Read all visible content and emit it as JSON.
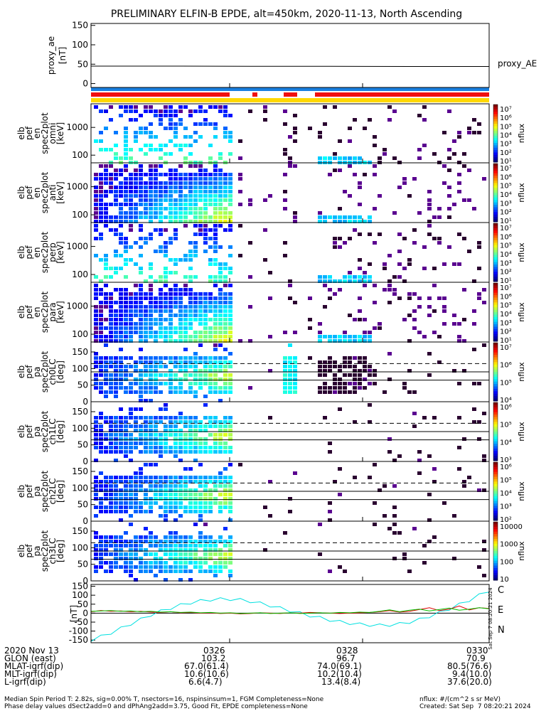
{
  "title": "PRELIMINARY ELFIN-B EPDE, alt=450km, 2020-11-13, North Ascending",
  "chart_data": [
    {
      "type": "line",
      "ylabel_lines": [
        "proxy_ae",
        "[nT]"
      ],
      "yticks": [
        "150",
        "100",
        "50",
        "0"
      ],
      "ylim": [
        -10,
        155
      ],
      "series": [
        {
          "name": "proxy_AE",
          "values": [
            45,
            45,
            44.5,
            44.5,
            44,
            44
          ]
        }
      ]
    },
    {
      "type": "heatmap",
      "ylabel_lines": [
        "elb",
        "pef",
        "en",
        "spec2plot",
        "omni",
        "[keV]"
      ],
      "yticks": [
        "1000",
        "100"
      ],
      "colorbar": {
        "label": "nflux",
        "ticks": [
          "10⁷",
          "10⁶",
          "10⁵",
          "10⁴",
          "10³",
          "10²",
          "10¹"
        ]
      }
    },
    {
      "type": "heatmap",
      "ylabel_lines": [
        "elb",
        "pef",
        "en",
        "spec2plot",
        "anti",
        "[keV]"
      ],
      "yticks": [
        "1000",
        "100"
      ],
      "colorbar": {
        "label": "nflux",
        "ticks": [
          "10⁷",
          "10⁶",
          "10⁵",
          "10⁴",
          "10³",
          "10²",
          "10¹"
        ]
      }
    },
    {
      "type": "heatmap",
      "ylabel_lines": [
        "elb",
        "pef",
        "en",
        "spec2plot",
        "perp",
        "[keV]"
      ],
      "yticks": [
        "1000",
        "100"
      ],
      "colorbar": {
        "label": "nflux",
        "ticks": [
          "10⁷",
          "10⁶",
          "10⁵",
          "10⁴",
          "10³",
          "10²",
          "10¹"
        ]
      }
    },
    {
      "type": "heatmap",
      "ylabel_lines": [
        "elb",
        "pef",
        "en",
        "spec2plot",
        "para",
        "[keV]"
      ],
      "yticks": [
        "1000",
        "100"
      ],
      "colorbar": {
        "label": "nflux",
        "ticks": [
          "10⁷",
          "10⁶",
          "10⁵",
          "10⁴",
          "10³",
          "10²",
          "10¹"
        ]
      }
    },
    {
      "type": "heatmap",
      "ylabel_lines": [
        "elb",
        "pef",
        "pa",
        "spec2plot",
        "ch0LC",
        "[deg]"
      ],
      "yticks": [
        "150",
        "100",
        "50",
        "0"
      ],
      "colorbar": {
        "label": "nflux",
        "ticks": [
          "10⁷",
          "10⁶",
          "10⁵",
          "10⁴"
        ]
      }
    },
    {
      "type": "heatmap",
      "ylabel_lines": [
        "elb",
        "pef",
        "pa",
        "spec2plot",
        "ch1LC",
        "[deg]"
      ],
      "yticks": [
        "150",
        "100",
        "50",
        "0"
      ],
      "colorbar": {
        "label": "nflux",
        "ticks": [
          "10⁶",
          "10⁵",
          "10⁴",
          "10³"
        ]
      }
    },
    {
      "type": "heatmap",
      "ylabel_lines": [
        "elb",
        "pef",
        "pa",
        "spec2plot",
        "ch2LC",
        "[deg]"
      ],
      "yticks": [
        "150",
        "100",
        "50",
        "0"
      ],
      "colorbar": {
        "label": "nflux",
        "ticks": [
          "10⁶",
          "10⁵",
          "10⁴",
          "10³",
          "10²"
        ]
      }
    },
    {
      "type": "heatmap",
      "ylabel_lines": [
        "elb",
        "pef",
        "pa",
        "spec2plot",
        "ch3LC",
        "[deg]"
      ],
      "yticks": [
        "150",
        "100",
        "50",
        "0"
      ],
      "colorbar": {
        "label": "nflux",
        "ticks": [
          "10000",
          "1000",
          "100",
          "10"
        ]
      }
    },
    {
      "type": "line",
      "ylabel_lines": [
        "[nT]"
      ],
      "yticks": [
        "150",
        "100",
        "50",
        "0",
        "-50",
        "-100",
        "-150"
      ],
      "ylim": [
        -165,
        160
      ],
      "series": [
        {
          "name": "C",
          "color": "#00e0e0",
          "values": [
            -150,
            -130,
            -110,
            -85,
            -60,
            -35,
            -10,
            10,
            28,
            45,
            58,
            68,
            75,
            78,
            78,
            74,
            66,
            55,
            42,
            28,
            14,
            0,
            -14,
            -26,
            -38,
            -48,
            -56,
            -62,
            -66,
            -68,
            -66,
            -60,
            -50,
            -36,
            -18,
            2,
            24,
            48,
            72,
            100,
            125
          ]
        },
        {
          "name": "E",
          "color": "#e00000",
          "values": [
            8,
            15,
            10,
            12,
            8,
            10,
            6,
            4,
            8,
            2,
            4,
            0,
            2,
            -2,
            0,
            -4,
            -2,
            2,
            0,
            -2,
            2,
            0,
            4,
            2,
            0,
            -2,
            0,
            2,
            4,
            8,
            14,
            6,
            10,
            20,
            30,
            14,
            22,
            40,
            18,
            30,
            26
          ]
        },
        {
          "name": "N",
          "color": "#00c000",
          "values": [
            10,
            12,
            14,
            10,
            12,
            8,
            10,
            6,
            8,
            4,
            6,
            2,
            4,
            0,
            2,
            -2,
            0,
            2,
            -2,
            0,
            2,
            -2,
            0,
            2,
            0,
            4,
            2,
            6,
            4,
            10,
            18,
            8,
            16,
            22,
            12,
            20,
            28,
            16,
            22,
            30,
            24
          ]
        }
      ]
    }
  ],
  "time_axis": {
    "ticks": [
      "0326",
      "0328",
      "0330"
    ]
  },
  "orbit_rows": [
    {
      "label": "2020 Nov 13",
      "values": [
        "0326",
        "0328",
        "0330"
      ]
    },
    {
      "label": "GLON (east)",
      "values": [
        "103.2",
        "96.7",
        "70.9"
      ]
    },
    {
      "label": "MLAT-igrf(dip)",
      "values": [
        "67.0(61.4)",
        "74.0(69.1)",
        "80.5(76.6)"
      ]
    },
    {
      "label": "MLT-igrf(dip)",
      "values": [
        "10.6(10.6)",
        "10.2(10.4)",
        "9.4(10.0)"
      ]
    },
    {
      "label": "L-igrf(dip)",
      "values": [
        "6.6(4.7)",
        "13.4(8.4)",
        "37.6(20.0)"
      ]
    }
  ],
  "footer_left_1": "Median Spin Period T: 2.82s, sig=0.00% T, nsectors=16, nspinsinsum=1, FGM Completeness=None",
  "footer_left_2": "Phase delay values dSect2add=0 and dPhAng2add=3.75, Good Fit, EPDE completeness=None",
  "footer_right_1": "nflux: #/(cm^2 s sr MeV)",
  "footer_right_2": "Created: Sat Sep  7 08:20:21 2024",
  "side_stamp": "Sat Sep  7 08:20:21 2024"
}
